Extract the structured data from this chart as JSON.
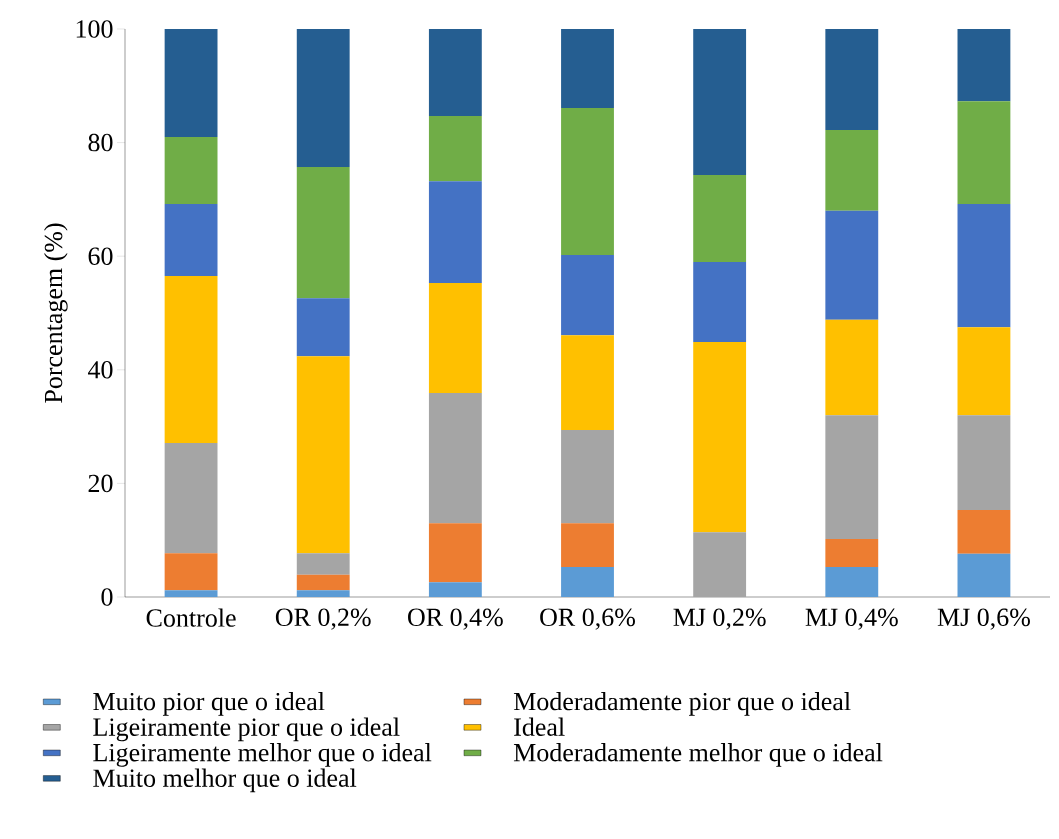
{
  "chart_data": {
    "type": "bar",
    "stacked": true,
    "ylabel": "Porcentagem (%)",
    "categories": [
      "Controle",
      "OR 0,2%",
      "OR 0,4%",
      "OR 0,6%",
      "MJ 0,2%",
      "MJ 0,4%",
      "MJ 0,6%"
    ],
    "ylim": [
      0,
      100
    ],
    "yticks": [
      0,
      20,
      40,
      60,
      80,
      100
    ],
    "legend": "bottom",
    "series": [
      {
        "name": "Muito pior que o ideal",
        "color": "#5b9bd5",
        "values": [
          1.2,
          1.2,
          2.6,
          5.3,
          0,
          5.3,
          7.6
        ]
      },
      {
        "name": "Moderadamente pior que o ideal",
        "color": "#ed7d31",
        "values": [
          6.5,
          2.7,
          10.4,
          7.7,
          0,
          4.9,
          7.7
        ]
      },
      {
        "name": "Ligeiramente pior que o ideal",
        "color": "#a5a5a5",
        "values": [
          19.4,
          3.8,
          22.9,
          16.4,
          11.4,
          21.8,
          16.7
        ]
      },
      {
        "name": "Ideal",
        "color": "#ffc000",
        "values": [
          29.4,
          34.7,
          19.4,
          16.7,
          33.5,
          16.8,
          15.5
        ]
      },
      {
        "name": "Ligeiramente melhor que o ideal",
        "color": "#4472c4",
        "values": [
          12.7,
          10.2,
          17.9,
          14.1,
          14.1,
          19.2,
          21.7
        ]
      },
      {
        "name": "Moderadamente melhor que o ideal",
        "color": "#70ad47",
        "values": [
          11.8,
          23.1,
          11.5,
          25.9,
          15.3,
          14.2,
          18.1
        ]
      },
      {
        "name": "Muito melhor que o ideal",
        "color": "#255e91",
        "values": [
          19.0,
          24.3,
          15.3,
          13.9,
          25.7,
          17.8,
          12.7
        ]
      }
    ]
  }
}
